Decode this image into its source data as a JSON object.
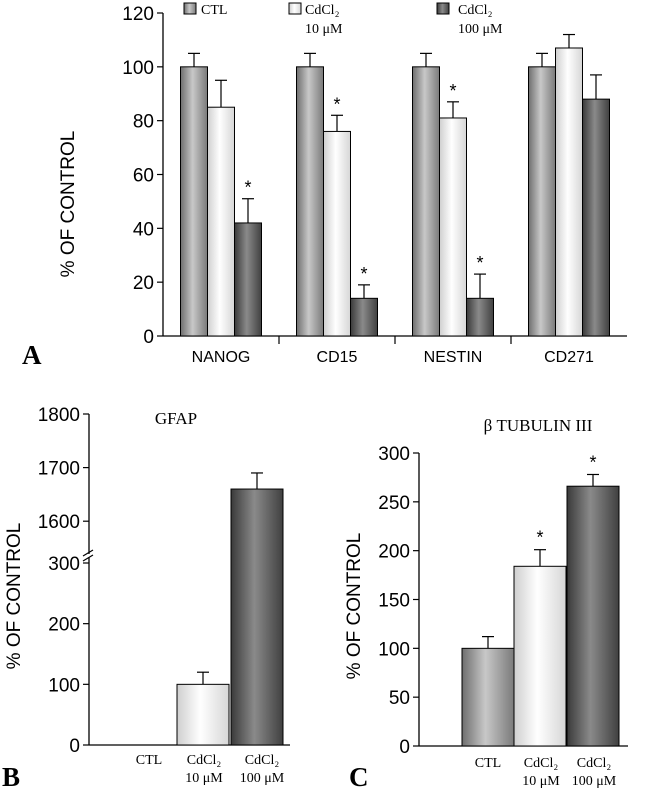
{
  "colors": {
    "ctl": "#9a9a9a",
    "cd10": "#ffffff",
    "cd100": "#5c5c5c",
    "axis": "#000000"
  },
  "legend": {
    "ctl": "CTL",
    "cd10_line1": "CdCl₂",
    "cd10_line2": "10 μM",
    "cd100_line1": "CdCl₂",
    "cd100_line2": "100 μM"
  },
  "chart_data": [
    {
      "type": "bar",
      "panel": "A",
      "ylabel": "% OF CONTROL",
      "ylim": [
        0,
        120
      ],
      "yticks": [
        0,
        20,
        40,
        60,
        80,
        100,
        120
      ],
      "categories": [
        "NANOG",
        "CD15",
        "NESTIN",
        "CD271"
      ],
      "series": [
        {
          "name": "CTL",
          "values": [
            100,
            100,
            100,
            100
          ],
          "errors": [
            5,
            5,
            5,
            5
          ],
          "significant": [
            false,
            false,
            false,
            false
          ]
        },
        {
          "name": "CdCl₂ 10 μM",
          "values": [
            85,
            76,
            81,
            107
          ],
          "errors": [
            10,
            6,
            6,
            5
          ],
          "significant": [
            false,
            true,
            true,
            false
          ]
        },
        {
          "name": "CdCl₂ 100 μM",
          "values": [
            42,
            14,
            14,
            88
          ],
          "errors": [
            9,
            5,
            9,
            9
          ],
          "significant": [
            true,
            true,
            true,
            false
          ]
        }
      ]
    },
    {
      "type": "bar",
      "panel": "B",
      "title": "GFAP",
      "ylabel": "% OF CONTROL",
      "broken_axis": true,
      "lower_range": [
        0,
        300
      ],
      "upper_range": [
        1550,
        1800
      ],
      "yticks_lower": [
        0,
        100,
        200,
        300
      ],
      "yticks_upper": [
        1600,
        1700,
        1800
      ],
      "categories": [
        "CTL",
        "CdCl₂ 10 μM",
        "CdCl₂ 100 μM"
      ],
      "values": [
        0,
        100,
        1660
      ],
      "errors": [
        0,
        20,
        30
      ]
    },
    {
      "type": "bar",
      "panel": "C",
      "title": "β TUBULIN III",
      "ylabel": "% OF CONTROL",
      "ylim": [
        0,
        300
      ],
      "yticks": [
        0,
        50,
        100,
        150,
        200,
        250,
        300
      ],
      "categories": [
        "CTL",
        "CdCl₂ 10 μM",
        "CdCl₂ 100 μM"
      ],
      "values": [
        100,
        184,
        266
      ],
      "errors": [
        12,
        17,
        12
      ],
      "significant": [
        false,
        true,
        true
      ]
    }
  ],
  "panel_labels": {
    "a": "A",
    "b": "B",
    "c": "C"
  },
  "xcat": {
    "ctl": "CTL",
    "cd10_line1": "CdCl₂",
    "cd10_line2": "10 μM",
    "cd100_line1": "CdCl₂",
    "cd100_line2": "100 μM"
  }
}
